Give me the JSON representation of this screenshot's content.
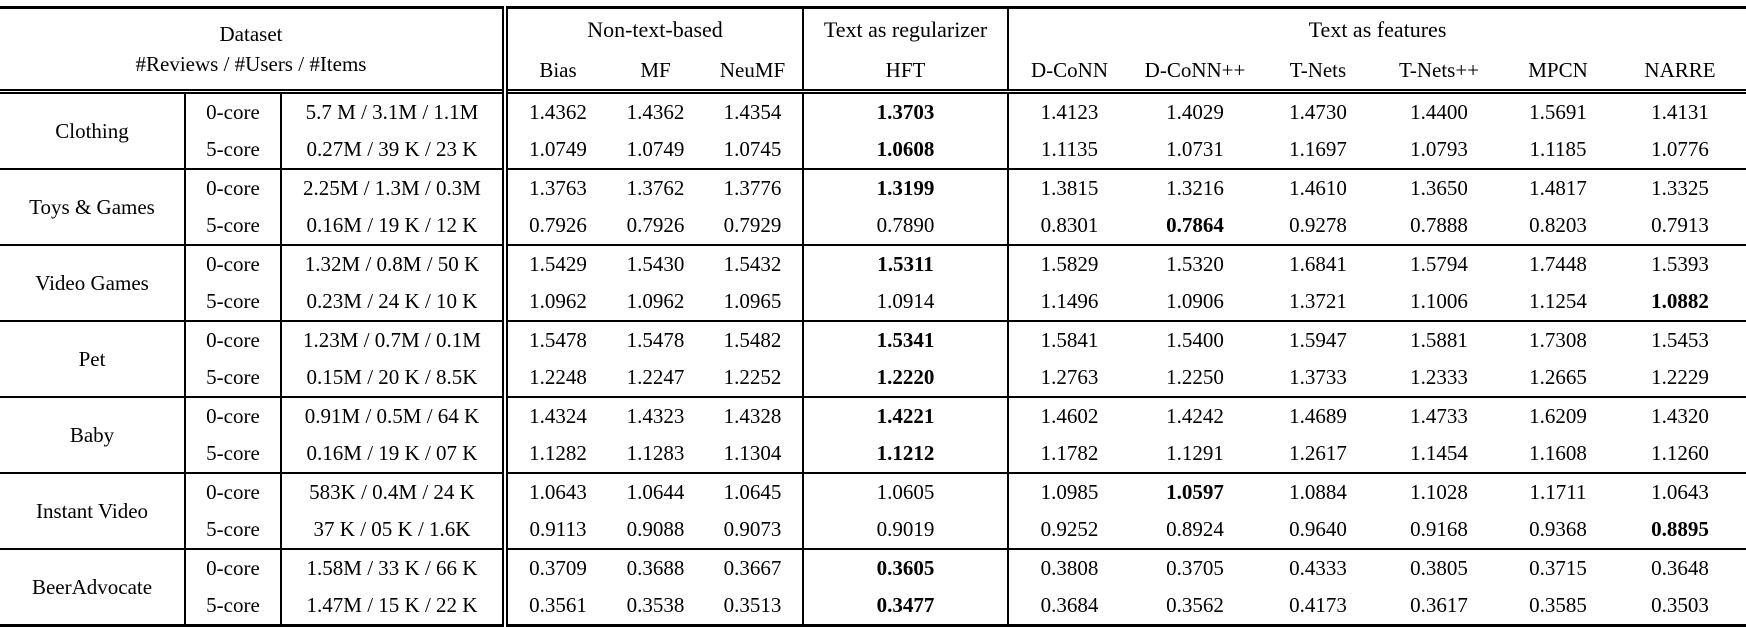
{
  "header": {
    "dataset_label": "Dataset",
    "dataset_sublabel": "#Reviews / #Users / #Items",
    "groups": [
      {
        "label": "Non-text-based"
      },
      {
        "label": "Text as regularizer"
      },
      {
        "label": "Text as features"
      }
    ]
  },
  "columns": [
    "Bias",
    "MF",
    "NeuMF",
    "HFT",
    "D-CoNN",
    "D-CoNN++",
    "T-Nets",
    "T-Nets++",
    "MPCN",
    "NARRE"
  ],
  "chart_data": {
    "type": "table",
    "title": "",
    "column_groups": [
      {
        "label": "Non-text-based",
        "columns": [
          "Bias",
          "MF",
          "NeuMF"
        ]
      },
      {
        "label": "Text as regularizer",
        "columns": [
          "HFT"
        ]
      },
      {
        "label": "Text as features",
        "columns": [
          "D-CoNN",
          "D-CoNN++",
          "T-Nets",
          "T-Nets++",
          "MPCN",
          "NARRE"
        ]
      }
    ]
  },
  "rows": [
    {
      "dataset": "Clothing",
      "variants": [
        {
          "core": "0-core",
          "stats": "5.7 M / 3.1M / 1.1M",
          "values": [
            "1.4362",
            "1.4362",
            "1.4354",
            "1.3703",
            "1.4123",
            "1.4029",
            "1.4730",
            "1.4400",
            "1.5691",
            "1.4131"
          ],
          "bold": [
            3
          ]
        },
        {
          "core": "5-core",
          "stats": "0.27M / 39 K / 23 K",
          "values": [
            "1.0749",
            "1.0749",
            "1.0745",
            "1.0608",
            "1.1135",
            "1.0731",
            "1.1697",
            "1.0793",
            "1.1185",
            "1.0776"
          ],
          "bold": [
            3
          ]
        }
      ]
    },
    {
      "dataset": "Toys & Games",
      "variants": [
        {
          "core": "0-core",
          "stats": "2.25M / 1.3M / 0.3M",
          "values": [
            "1.3763",
            "1.3762",
            "1.3776",
            "1.3199",
            "1.3815",
            "1.3216",
            "1.4610",
            "1.3650",
            "1.4817",
            "1.3325"
          ],
          "bold": [
            3
          ]
        },
        {
          "core": "5-core",
          "stats": "0.16M / 19 K / 12 K",
          "values": [
            "0.7926",
            "0.7926",
            "0.7929",
            "0.7890",
            "0.8301",
            "0.7864",
            "0.9278",
            "0.7888",
            "0.8203",
            "0.7913"
          ],
          "bold": [
            5
          ]
        }
      ]
    },
    {
      "dataset": "Video Games",
      "variants": [
        {
          "core": "0-core",
          "stats": "1.32M / 0.8M / 50 K",
          "values": [
            "1.5429",
            "1.5430",
            "1.5432",
            "1.5311",
            "1.5829",
            "1.5320",
            "1.6841",
            "1.5794",
            "1.7448",
            "1.5393"
          ],
          "bold": [
            3
          ]
        },
        {
          "core": "5-core",
          "stats": "0.23M / 24 K / 10 K",
          "values": [
            "1.0962",
            "1.0962",
            "1.0965",
            "1.0914",
            "1.1496",
            "1.0906",
            "1.3721",
            "1.1006",
            "1.1254",
            "1.0882"
          ],
          "bold": [
            9
          ]
        }
      ]
    },
    {
      "dataset": "Pet",
      "variants": [
        {
          "core": "0-core",
          "stats": "1.23M / 0.7M / 0.1M",
          "values": [
            "1.5478",
            "1.5478",
            "1.5482",
            "1.5341",
            "1.5841",
            "1.5400",
            "1.5947",
            "1.5881",
            "1.7308",
            "1.5453"
          ],
          "bold": [
            3
          ]
        },
        {
          "core": "5-core",
          "stats": "0.15M / 20 K / 8.5K",
          "values": [
            "1.2248",
            "1.2247",
            "1.2252",
            "1.2220",
            "1.2763",
            "1.2250",
            "1.3733",
            "1.2333",
            "1.2665",
            "1.2229"
          ],
          "bold": [
            3
          ]
        }
      ]
    },
    {
      "dataset": "Baby",
      "variants": [
        {
          "core": "0-core",
          "stats": "0.91M / 0.5M / 64 K",
          "values": [
            "1.4324",
            "1.4323",
            "1.4328",
            "1.4221",
            "1.4602",
            "1.4242",
            "1.4689",
            "1.4733",
            "1.6209",
            "1.4320"
          ],
          "bold": [
            3
          ]
        },
        {
          "core": "5-core",
          "stats": "0.16M / 19 K / 07 K",
          "values": [
            "1.1282",
            "1.1283",
            "1.1304",
            "1.1212",
            "1.1782",
            "1.1291",
            "1.2617",
            "1.1454",
            "1.1608",
            "1.1260"
          ],
          "bold": [
            3
          ]
        }
      ]
    },
    {
      "dataset": "Instant Video",
      "variants": [
        {
          "core": "0-core",
          "stats": "583K / 0.4M / 24 K",
          "values": [
            "1.0643",
            "1.0644",
            "1.0645",
            "1.0605",
            "1.0985",
            "1.0597",
            "1.0884",
            "1.1028",
            "1.1711",
            "1.0643"
          ],
          "bold": [
            5
          ]
        },
        {
          "core": "5-core",
          "stats": "37 K / 05 K / 1.6K",
          "values": [
            "0.9113",
            "0.9088",
            "0.9073",
            "0.9019",
            "0.9252",
            "0.8924",
            "0.9640",
            "0.9168",
            "0.9368",
            "0.8895"
          ],
          "bold": [
            9
          ]
        }
      ]
    },
    {
      "dataset": "BeerAdvocate",
      "variants": [
        {
          "core": "0-core",
          "stats": "1.58M / 33 K / 66 K",
          "values": [
            "0.3709",
            "0.3688",
            "0.3667",
            "0.3605",
            "0.3808",
            "0.3705",
            "0.4333",
            "0.3805",
            "0.3715",
            "0.3648"
          ],
          "bold": [
            3
          ]
        },
        {
          "core": "5-core",
          "stats": "1.47M / 15 K / 22 K",
          "values": [
            "0.3561",
            "0.3538",
            "0.3513",
            "0.3477",
            "0.3684",
            "0.3562",
            "0.4173",
            "0.3617",
            "0.3585",
            "0.3503"
          ],
          "bold": [
            3
          ]
        }
      ]
    }
  ]
}
